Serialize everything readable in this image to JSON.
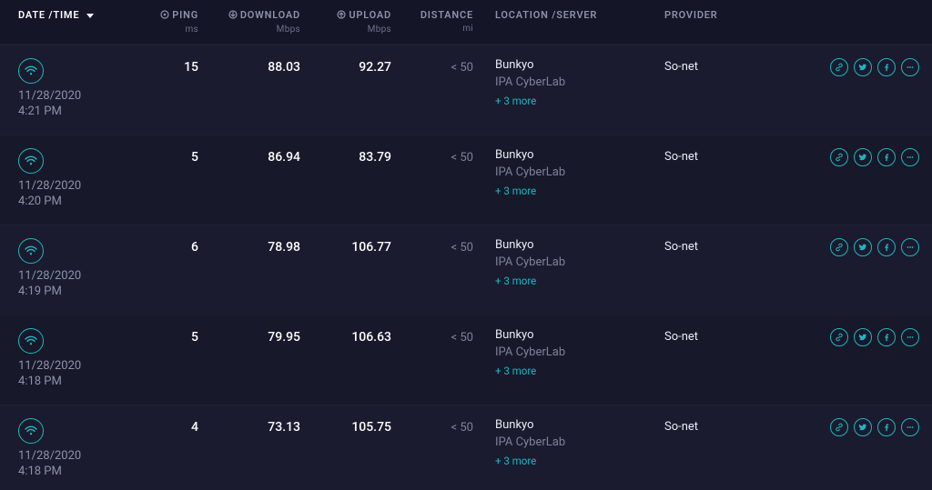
{
  "colors": {
    "bg": "#141526",
    "row_odd": "#1a1b2e",
    "row_even": "#171829",
    "accent": "#1fb6c1",
    "text": "#d6d9e6",
    "muted": "#8d92a9",
    "dim": "#7d8199",
    "white": "#ffffff"
  },
  "headers": {
    "datetime": "DATE /TIME",
    "ping": "PING",
    "ping_unit": "ms",
    "download": "DOWNLOAD",
    "download_unit": "Mbps",
    "upload": "UPLOAD",
    "upload_unit": "Mbps",
    "distance": "DISTANCE",
    "distance_unit": "mi",
    "location": "LOCATION /SERVER",
    "provider": "PROVIDER"
  },
  "sort": {
    "column": "datetime",
    "direction": "desc"
  },
  "action_icons": [
    "link-icon",
    "twitter-icon",
    "facebook-icon",
    "more-icon"
  ],
  "rows": [
    {
      "date": "11/28/2020",
      "time": "4:21 PM",
      "ping": "15",
      "download": "88.03",
      "upload": "92.27",
      "distance": "< 50",
      "location_city": "Bunkyo",
      "location_server": "IPA CyberLab",
      "location_more": "+ 3 more",
      "provider": "So-net"
    },
    {
      "date": "11/28/2020",
      "time": "4:20 PM",
      "ping": "5",
      "download": "86.94",
      "upload": "83.79",
      "distance": "< 50",
      "location_city": "Bunkyo",
      "location_server": "IPA CyberLab",
      "location_more": "+ 3 more",
      "provider": "So-net"
    },
    {
      "date": "11/28/2020",
      "time": "4:19 PM",
      "ping": "6",
      "download": "78.98",
      "upload": "106.77",
      "distance": "< 50",
      "location_city": "Bunkyo",
      "location_server": "IPA CyberLab",
      "location_more": "+ 3 more",
      "provider": "So-net"
    },
    {
      "date": "11/28/2020",
      "time": "4:18 PM",
      "ping": "5",
      "download": "79.95",
      "upload": "106.63",
      "distance": "< 50",
      "location_city": "Bunkyo",
      "location_server": "IPA CyberLab",
      "location_more": "+ 3 more",
      "provider": "So-net"
    },
    {
      "date": "11/28/2020",
      "time": "4:18 PM",
      "ping": "4",
      "download": "73.13",
      "upload": "105.75",
      "distance": "< 50",
      "location_city": "Bunkyo",
      "location_server": "IPA CyberLab",
      "location_more": "+ 3 more",
      "provider": "So-net"
    }
  ]
}
